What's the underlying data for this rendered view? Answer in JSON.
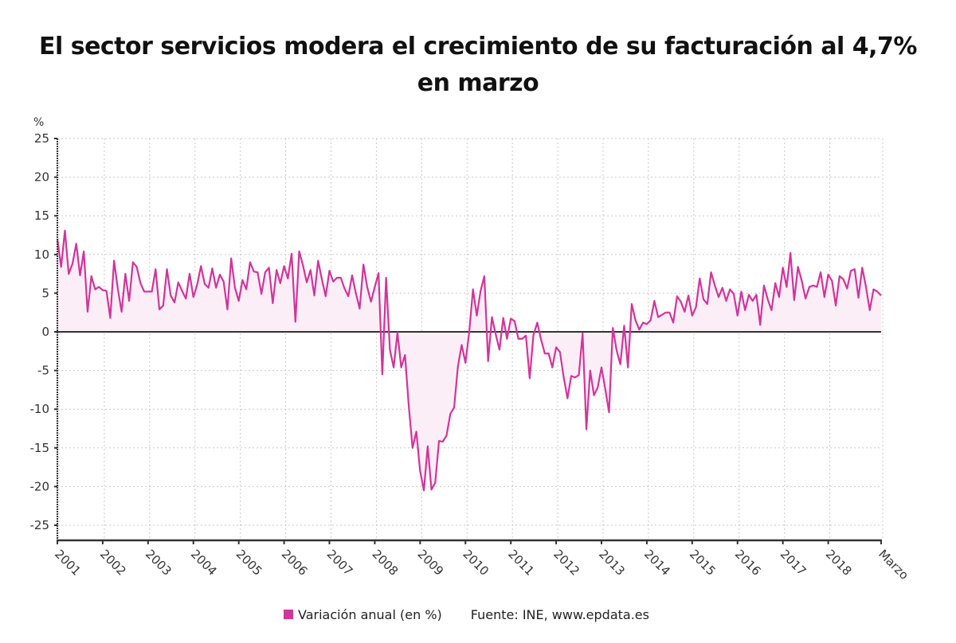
{
  "chart_data": {
    "type": "area",
    "title": "El sector servicios moderan el crecimiento de su facturación al 4,7% en marzo",
    "title_lines": [
      "El sector servicios modera el crecimiento de su facturación al 4,7%",
      "en marzo"
    ],
    "ylabel": "%",
    "xlabel": "",
    "ylim": [
      -27,
      25
    ],
    "yticks": [
      25,
      20,
      15,
      10,
      5,
      0,
      -5,
      -10,
      -15,
      -20,
      -25
    ],
    "xtick_labels": [
      "2001",
      "2002",
      "2003",
      "2004",
      "2005",
      "2006",
      "2007",
      "2008",
      "2009",
      "2010",
      "2011",
      "2012",
      "2013",
      "2014",
      "2015",
      "2016",
      "2017",
      "2018",
      "Marzo"
    ],
    "xtick_month_index": [
      0,
      12,
      24,
      36,
      48,
      60,
      72,
      84,
      96,
      108,
      120,
      132,
      144,
      156,
      168,
      180,
      192,
      204,
      218
    ],
    "grid": true,
    "frequency": "monthly",
    "start": "2001-01",
    "end": "2019-03",
    "series": [
      {
        "name": "Variación anual (en %)",
        "color": "#d0359a",
        "fill": "#fbeef6",
        "values": [
          12.0,
          8.4,
          13.1,
          7.5,
          8.8,
          11.4,
          7.3,
          10.4,
          2.6,
          7.2,
          5.5,
          5.8,
          5.4,
          5.3,
          1.8,
          9.2,
          5.6,
          2.6,
          7.5,
          4.0,
          9.0,
          8.4,
          6.3,
          5.2,
          5.2,
          5.2,
          8.1,
          2.9,
          3.4,
          8.1,
          4.7,
          3.8,
          6.4,
          5.3,
          4.3,
          7.5,
          4.5,
          6.1,
          8.5,
          6.2,
          5.7,
          8.2,
          5.7,
          7.4,
          6.5,
          2.9,
          9.5,
          5.7,
          4.0,
          6.7,
          5.5,
          9.0,
          7.8,
          7.7,
          4.9,
          7.7,
          8.3,
          3.7,
          8.0,
          6.3,
          8.5,
          6.9,
          10.1,
          1.3,
          10.4,
          8.6,
          6.4,
          8.0,
          4.7,
          9.2,
          6.8,
          4.6,
          7.9,
          6.5,
          7.0,
          7.0,
          5.6,
          4.6,
          7.3,
          5.0,
          3.0,
          8.7,
          5.8,
          3.9,
          5.8,
          7.6,
          -5.5,
          7.0,
          -2.3,
          -4.6,
          -0.1,
          -4.6,
          -3.0,
          -9.6,
          -15.0,
          -12.9,
          -18.0,
          -20.5,
          -14.8,
          -20.4,
          -19.5,
          -14.1,
          -14.2,
          -13.4,
          -10.6,
          -9.8,
          -4.5,
          -1.7,
          -4.0,
          0.0,
          5.5,
          2.1,
          5.3,
          7.2,
          -3.8,
          1.9,
          -0.3,
          -2.3,
          1.8,
          -0.9,
          1.7,
          1.4,
          -0.9,
          -0.9,
          -0.5,
          -6.0,
          -0.4,
          1.2,
          -1.0,
          -2.8,
          -2.8,
          -4.6,
          -2.0,
          -2.6,
          -5.9,
          -8.6,
          -5.7,
          -5.9,
          -5.6,
          -0.2,
          -12.6,
          -5.0,
          -8.2,
          -7.2,
          -4.6,
          -7.4,
          -10.4,
          0.5,
          -2.4,
          -4.2,
          0.8,
          -4.6,
          3.6,
          1.5,
          0.3,
          1.2,
          1.0,
          1.5,
          4.0,
          1.9,
          2.2,
          2.5,
          2.5,
          1.2,
          4.6,
          3.9,
          2.6,
          4.7,
          2.1,
          3.2,
          6.9,
          4.2,
          3.6,
          7.7,
          6.0,
          4.5,
          5.7,
          4.0,
          5.5,
          4.9,
          2.1,
          5.2,
          2.8,
          4.8,
          4.0,
          4.8,
          0.9,
          6.0,
          4.2,
          2.8,
          6.3,
          4.5,
          8.3,
          5.8,
          10.2,
          4.1,
          8.4,
          6.6,
          4.3,
          5.8,
          6.0,
          5.8,
          7.7,
          4.5,
          7.4,
          6.6,
          3.4,
          7.2,
          6.8,
          5.6,
          7.9,
          8.1,
          4.4,
          8.3,
          5.8,
          2.8,
          5.5,
          5.2,
          4.7
        ]
      }
    ],
    "legend": {
      "position": "bottom-center",
      "entries": [
        "Variación anual (en %)"
      ]
    },
    "source": "Fuente: INE, www.epdata.es"
  }
}
